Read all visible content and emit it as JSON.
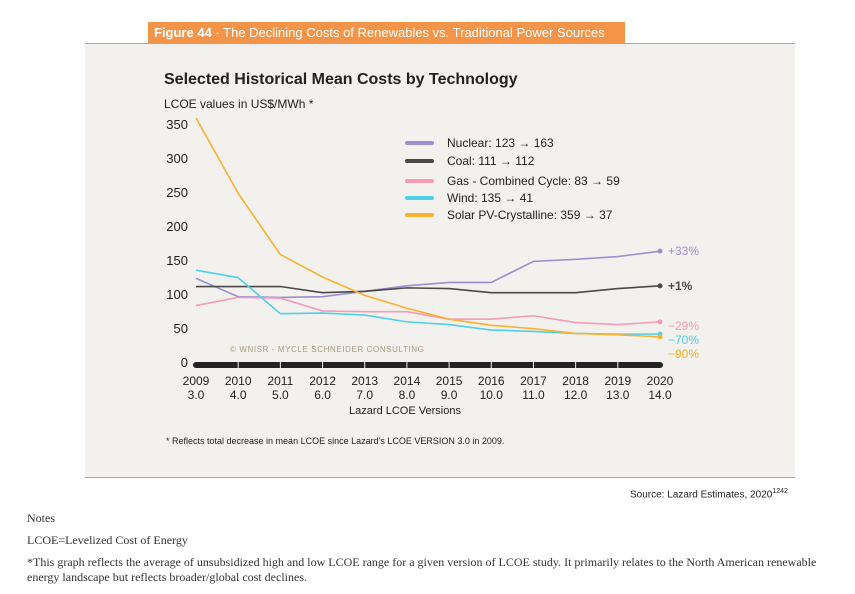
{
  "figure": {
    "label": "Figure 44",
    "separator": " · ",
    "title": "The Declining Costs of Renewables vs. Traditional Power Sources"
  },
  "chart_data": {
    "type": "line",
    "title": "Selected Historical Mean Costs by Technology",
    "ylabel": "LCOE values in US$/MWh *",
    "xlabel": "Lazard LCOE Versions",
    "x": [
      2009,
      2010,
      2011,
      2012,
      2013,
      2014,
      2015,
      2016,
      2017,
      2018,
      2019,
      2020
    ],
    "x_sublabels": [
      "3.0",
      "4.0",
      "5.0",
      "6.0",
      "7.0",
      "8.0",
      "9.0",
      "10.0",
      "11.0",
      "12.0",
      "13.0",
      "14.0"
    ],
    "ylim": [
      0,
      350
    ],
    "yticks": [
      0,
      50,
      100,
      150,
      200,
      250,
      300,
      350
    ],
    "grid": false,
    "legend_position": "top-right",
    "series": [
      {
        "name": "Nuclear: 123 → 163",
        "color": "#9b8fcf",
        "end_label": "+33%",
        "values": [
          123,
          96,
          95,
          96,
          104,
          112,
          117,
          117,
          148,
          151,
          155,
          163
        ]
      },
      {
        "name": "Coal: 111 → 112",
        "color": "#4a4a4a",
        "end_label": "+1%",
        "values": [
          111,
          111,
          111,
          102,
          104,
          109,
          108,
          102,
          102,
          102,
          108,
          112
        ]
      },
      {
        "name": "Gas - Combined Cycle: 83 → 59",
        "color": "#f59ab8",
        "end_label": "−29%",
        "values": [
          83,
          95,
          94,
          75,
          74,
          74,
          63,
          63,
          68,
          58,
          55,
          59
        ]
      },
      {
        "name": "Wind: 135 → 41",
        "color": "#4fd0ea",
        "end_label": "−70%",
        "values": [
          135,
          124,
          71,
          72,
          69,
          59,
          55,
          47,
          45,
          42,
          41,
          41
        ]
      },
      {
        "name": "Solar PV-Crystalline: 359 → 37",
        "color": "#fbb130",
        "end_label": "−90%",
        "values": [
          359,
          248,
          158,
          125,
          98,
          79,
          63,
          54,
          49,
          42,
          40,
          37
        ]
      }
    ],
    "watermark": "© WNISR - Mycle Schneider Consulting",
    "footnote": "* Reflects total decrease in mean LCOE since Lazard's  LCOE VERSION 3.0 in 2009."
  },
  "source": {
    "text": "Source: Lazard Estimates, 2020",
    "ref": "1242"
  },
  "notes": {
    "heading": "Notes",
    "line1": "LCOE=Levelized Cost of Energy",
    "line2": "*This graph reflects the average of unsubsidized high and low LCOE range for a given version of LCOE study. It primarily relates to the North American renewable energy landscape but reflects broader/global cost declines."
  }
}
